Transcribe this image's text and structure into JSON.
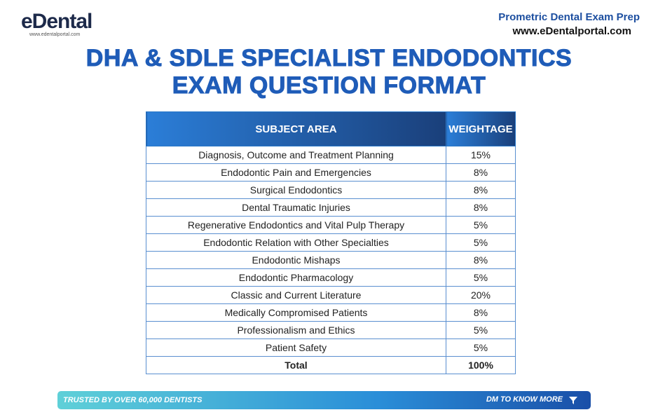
{
  "header": {
    "logo": "eDental",
    "logo_url": "www.edentalportal.com",
    "tagline": "Prometric Dental Exam Prep",
    "website": "www.eDentalportal.com"
  },
  "title": {
    "line1": "DHA & SDLE SPECIALIST ENDODONTICS",
    "line2": "EXAM QUESTION FORMAT"
  },
  "table": {
    "columns": [
      "SUBJECT AREA",
      "WEIGHTAGE"
    ],
    "rows": [
      [
        "Diagnosis, Outcome and Treatment Planning",
        "15%"
      ],
      [
        "Endodontic Pain and Emergencies",
        "8%"
      ],
      [
        "Surgical Endodontics",
        "8%"
      ],
      [
        "Dental Traumatic Injuries",
        "8%"
      ],
      [
        "Regenerative Endodontics and Vital Pulp Therapy",
        "5%"
      ],
      [
        "Endodontic Relation with Other Specialties",
        "5%"
      ],
      [
        "Endodontic Mishaps",
        "8%"
      ],
      [
        "Endodontic Pharmacology",
        "5%"
      ],
      [
        "Classic and Current Literature",
        "20%"
      ],
      [
        "Medically Compromised Patients",
        "8%"
      ],
      [
        "Professionalism and Ethics",
        "5%"
      ],
      [
        "Patient Safety",
        "5%"
      ]
    ],
    "total": [
      "Total",
      "100%"
    ]
  },
  "footer": {
    "left": "TRUSTED BY OVER 60,000 DENTISTS",
    "right": "DM TO KNOW MORE"
  }
}
